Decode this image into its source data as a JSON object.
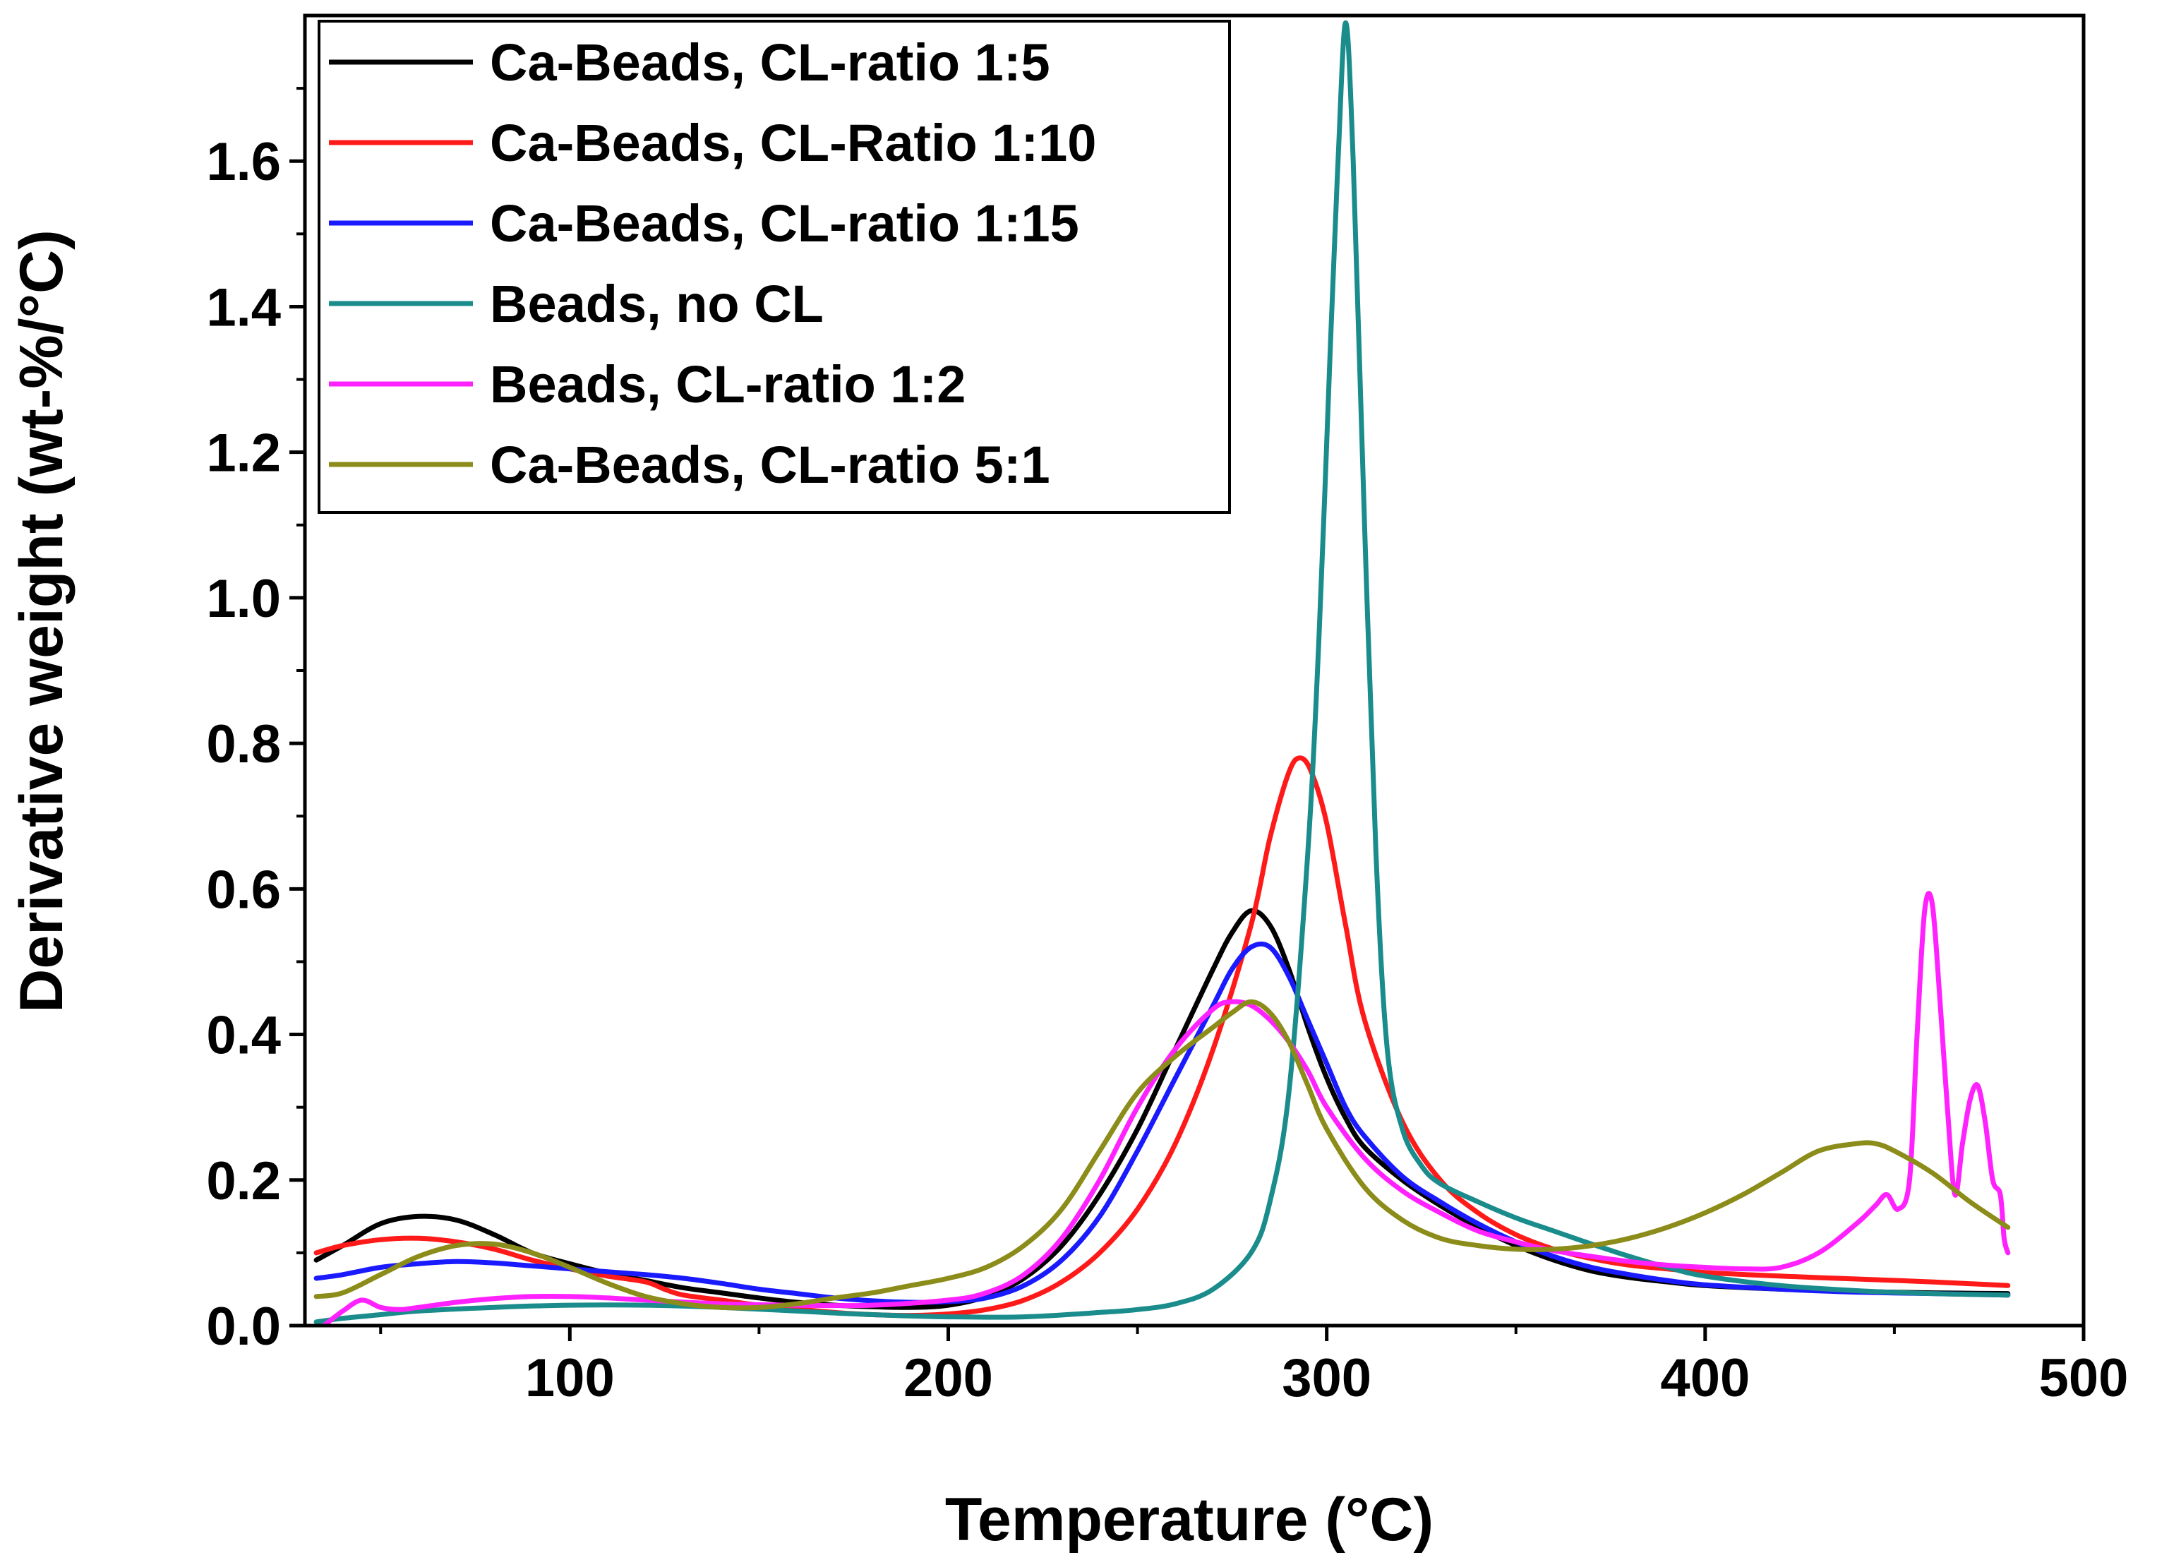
{
  "chart_data": {
    "type": "line",
    "title": "",
    "xlabel": "Temperature (°C)",
    "ylabel": "Derivative weight (wt-%/°C)",
    "xlim": [
      30,
      500
    ],
    "ylim": [
      0,
      1.8
    ],
    "xticks": [
      100,
      200,
      300,
      400,
      500
    ],
    "xtick_labels": [
      "100",
      "200",
      "300",
      "400",
      "500"
    ],
    "yticks": [
      0.0,
      0.2,
      0.4,
      0.6,
      0.8,
      1.0,
      1.2,
      1.4,
      1.6
    ],
    "ytick_labels": [
      "0.0",
      "0.2",
      "0.4",
      "0.6",
      "0.8",
      "1.0",
      "1.2",
      "1.4",
      "1.6"
    ],
    "legend_position": "top-left",
    "grid": false,
    "series": [
      {
        "name": "Ca-Beads, CL-ratio 1:5",
        "color": "#000000",
        "x": [
          33,
          40,
          50,
          60,
          70,
          80,
          90,
          100,
          110,
          120,
          130,
          140,
          150,
          160,
          170,
          180,
          190,
          200,
          210,
          220,
          230,
          240,
          250,
          260,
          270,
          275,
          280,
          285,
          290,
          295,
          300,
          305,
          310,
          320,
          330,
          340,
          350,
          360,
          370,
          380,
          390,
          400,
          420,
          440,
          460,
          480
        ],
        "y": [
          0.09,
          0.11,
          0.14,
          0.15,
          0.145,
          0.125,
          0.1,
          0.085,
          0.072,
          0.062,
          0.052,
          0.045,
          0.038,
          0.032,
          0.028,
          0.026,
          0.025,
          0.028,
          0.04,
          0.065,
          0.11,
          0.18,
          0.27,
          0.38,
          0.49,
          0.54,
          0.57,
          0.55,
          0.49,
          0.41,
          0.34,
          0.285,
          0.245,
          0.2,
          0.165,
          0.135,
          0.11,
          0.09,
          0.075,
          0.066,
          0.06,
          0.055,
          0.05,
          0.047,
          0.045,
          0.044
        ]
      },
      {
        "name": "Ca-Beads, CL-Ratio 1:10",
        "color": "#ff1a1a",
        "x": [
          33,
          40,
          50,
          60,
          70,
          80,
          90,
          100,
          110,
          120,
          125,
          130,
          140,
          150,
          160,
          170,
          180,
          190,
          200,
          210,
          220,
          230,
          240,
          250,
          260,
          270,
          280,
          285,
          290,
          293,
          296,
          300,
          305,
          310,
          320,
          330,
          340,
          350,
          360,
          370,
          380,
          390,
          400,
          420,
          440,
          460,
          480
        ],
        "y": [
          0.1,
          0.11,
          0.118,
          0.12,
          0.115,
          0.105,
          0.09,
          0.078,
          0.068,
          0.06,
          0.05,
          0.042,
          0.035,
          0.028,
          0.023,
          0.018,
          0.015,
          0.014,
          0.016,
          0.022,
          0.035,
          0.06,
          0.1,
          0.16,
          0.25,
          0.38,
          0.55,
          0.67,
          0.76,
          0.78,
          0.76,
          0.69,
          0.55,
          0.42,
          0.28,
          0.2,
          0.155,
          0.125,
          0.105,
          0.092,
          0.083,
          0.078,
          0.073,
          0.068,
          0.064,
          0.06,
          0.055
        ]
      },
      {
        "name": "Ca-Beads, CL-ratio 1:15",
        "color": "#1a1aff",
        "x": [
          33,
          40,
          50,
          60,
          70,
          80,
          90,
          100,
          110,
          120,
          130,
          140,
          150,
          160,
          170,
          180,
          190,
          200,
          210,
          220,
          230,
          240,
          250,
          260,
          270,
          275,
          280,
          285,
          290,
          295,
          300,
          305,
          310,
          320,
          330,
          340,
          350,
          360,
          370,
          380,
          390,
          400,
          420,
          440,
          460,
          480
        ],
        "y": [
          0.065,
          0.07,
          0.08,
          0.085,
          0.088,
          0.086,
          0.082,
          0.078,
          0.074,
          0.07,
          0.065,
          0.058,
          0.05,
          0.044,
          0.038,
          0.034,
          0.032,
          0.033,
          0.038,
          0.055,
          0.09,
          0.15,
          0.24,
          0.34,
          0.44,
          0.49,
          0.52,
          0.52,
          0.48,
          0.42,
          0.36,
          0.3,
          0.26,
          0.205,
          0.17,
          0.14,
          0.115,
          0.095,
          0.08,
          0.07,
          0.062,
          0.056,
          0.05,
          0.046,
          0.044,
          0.042
        ]
      },
      {
        "name": "Beads, no CL",
        "color": "#1a8c8c",
        "x": [
          33,
          40,
          50,
          60,
          80,
          100,
          120,
          140,
          160,
          180,
          200,
          220,
          240,
          250,
          260,
          270,
          280,
          285,
          290,
          295,
          298,
          301,
          303,
          305,
          307,
          310,
          313,
          316,
          320,
          325,
          330,
          340,
          350,
          360,
          370,
          380,
          390,
          400,
          420,
          440,
          460,
          480
        ],
        "y": [
          0.005,
          0.01,
          0.015,
          0.02,
          0.025,
          0.028,
          0.028,
          0.025,
          0.02,
          0.015,
          0.012,
          0.012,
          0.018,
          0.022,
          0.03,
          0.05,
          0.1,
          0.17,
          0.32,
          0.65,
          0.95,
          1.35,
          1.6,
          1.79,
          1.6,
          1.1,
          0.65,
          0.38,
          0.27,
          0.22,
          0.195,
          0.17,
          0.148,
          0.13,
          0.112,
          0.095,
          0.08,
          0.068,
          0.055,
          0.048,
          0.044,
          0.042
        ]
      },
      {
        "name": "Beads, CL-ratio 1:2",
        "color": "#ff22ff",
        "x": [
          35,
          40,
          45,
          50,
          55,
          60,
          70,
          80,
          90,
          100,
          110,
          120,
          140,
          160,
          180,
          200,
          210,
          220,
          230,
          240,
          250,
          260,
          270,
          275,
          280,
          285,
          290,
          295,
          300,
          310,
          320,
          330,
          340,
          350,
          360,
          370,
          380,
          390,
          400,
          410,
          420,
          430,
          440,
          445,
          448,
          451,
          454,
          456,
          458,
          460,
          462,
          464,
          466,
          468,
          470,
          472,
          474,
          476,
          478,
          479,
          480
        ],
        "y": [
          0.0,
          0.02,
          0.035,
          0.025,
          0.022,
          0.025,
          0.032,
          0.037,
          0.04,
          0.04,
          0.038,
          0.035,
          0.03,
          0.028,
          0.028,
          0.035,
          0.045,
          0.07,
          0.12,
          0.2,
          0.3,
          0.38,
          0.435,
          0.445,
          0.44,
          0.42,
          0.39,
          0.35,
          0.3,
          0.23,
          0.185,
          0.155,
          0.13,
          0.115,
          0.103,
          0.095,
          0.088,
          0.083,
          0.08,
          0.078,
          0.08,
          0.1,
          0.14,
          0.165,
          0.18,
          0.16,
          0.2,
          0.4,
          0.57,
          0.58,
          0.45,
          0.3,
          0.18,
          0.25,
          0.31,
          0.33,
          0.28,
          0.2,
          0.18,
          0.12,
          0.1
        ]
      },
      {
        "name": "Ca-Beads, CL-ratio 5:1",
        "color": "#8c8c1a",
        "x": [
          33,
          40,
          50,
          60,
          70,
          80,
          90,
          100,
          110,
          120,
          130,
          140,
          150,
          160,
          170,
          180,
          190,
          200,
          210,
          220,
          230,
          240,
          250,
          260,
          270,
          275,
          280,
          285,
          290,
          295,
          300,
          310,
          320,
          330,
          340,
          350,
          360,
          370,
          380,
          390,
          400,
          410,
          420,
          430,
          440,
          445,
          450,
          460,
          470,
          480
        ],
        "y": [
          0.04,
          0.045,
          0.07,
          0.095,
          0.11,
          0.112,
          0.1,
          0.08,
          0.058,
          0.04,
          0.03,
          0.025,
          0.025,
          0.03,
          0.038,
          0.045,
          0.055,
          0.065,
          0.08,
          0.11,
          0.16,
          0.24,
          0.32,
          0.37,
          0.41,
          0.43,
          0.445,
          0.43,
          0.39,
          0.33,
          0.27,
          0.19,
          0.145,
          0.12,
          0.11,
          0.105,
          0.105,
          0.11,
          0.12,
          0.135,
          0.155,
          0.18,
          0.21,
          0.24,
          0.25,
          0.25,
          0.24,
          0.21,
          0.17,
          0.135
        ]
      }
    ]
  }
}
